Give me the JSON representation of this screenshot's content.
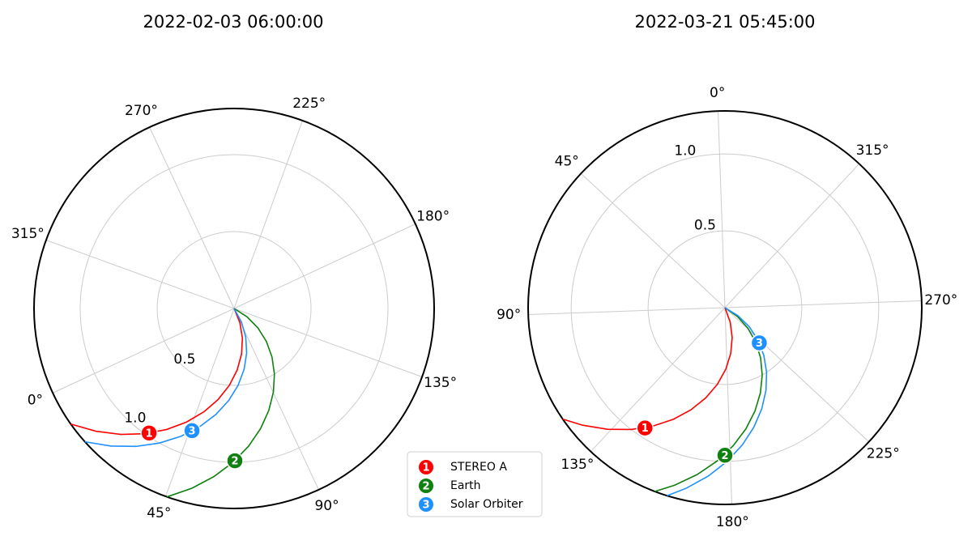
{
  "chart_data": [
    {
      "type": "polar",
      "title": "2022-02-03 06:00:00",
      "rlim": [
        0,
        1.3
      ],
      "rticks": [
        0.5,
        {
          "value": 1,
          "label": "1.0"
        }
      ],
      "rlabel_position": 25,
      "theta_offset": 205,
      "theta_direction": "counterclockwise",
      "thetaticks": [
        {
          "value": 0,
          "label": "0°"
        },
        {
          "value": 45,
          "label": "45°"
        },
        {
          "value": 90,
          "label": "90°"
        },
        {
          "value": 135,
          "label": "135°"
        },
        {
          "value": 180,
          "label": "180°"
        },
        {
          "value": 225,
          "label": "225°"
        },
        {
          "value": 270,
          "label": "270°"
        },
        {
          "value": 315,
          "label": "315°"
        }
      ],
      "grid": true,
      "legend": "lower right",
      "series": [
        {
          "name": "STEREO A",
          "color": "#ff0000",
          "marker_label": "1",
          "r": 0.98,
          "theta": 30.7,
          "line": {
            "r": [
              0,
              0.1,
              0.2,
              0.3,
              0.4,
              0.5,
              0.6,
              0.7,
              0.8,
              0.9,
              1.0,
              1.1,
              1.2,
              1.3
            ],
            "theta": [
              93.5,
              87.1,
              80.7,
              74.3,
              67.9,
              61.5,
              55.1,
              48.7,
              42.3,
              35.9,
              29.5,
              23.1,
              16.7,
              10.3
            ]
          }
        },
        {
          "name": "Earth",
          "color": "#108010",
          "marker_label": "2",
          "r": 0.99,
          "theta": 65.3,
          "line": {
            "r": [
              0,
              0.1,
              0.2,
              0.3,
              0.4,
              0.5,
              0.6,
              0.7,
              0.8,
              0.9,
              1.0,
              1.1,
              1.2,
              1.3
            ],
            "theta": [
              128.6,
              122.2,
              115.8,
              109.4,
              103.0,
              96.6,
              90.2,
              83.8,
              77.4,
              71.0,
              64.6,
              58.2,
              51.8,
              45.4
            ]
          }
        },
        {
          "name": "Solar Orbiter",
          "color": "#1e90ff",
          "marker_label": "3",
          "r": 0.84,
          "theta": 46,
          "line": {
            "r": [
              0,
              0.1,
              0.2,
              0.3,
              0.4,
              0.5,
              0.6,
              0.7,
              0.8,
              0.9,
              1.0,
              1.1,
              1.2,
              1.3
            ],
            "theta": [
              100,
              93.6,
              87.2,
              80.8,
              74.4,
              68,
              61.6,
              55.2,
              48.8,
              42.4,
              36,
              29.6,
              23.2,
              16.8
            ]
          }
        }
      ]
    },
    {
      "type": "polar",
      "title": "2022-03-21 05:45:00",
      "rlim": [
        0,
        1.28
      ],
      "rticks": [
        0.5,
        {
          "value": 1,
          "label": "1.0"
        }
      ],
      "rlabel_position": 13,
      "theta_offset": 92,
      "theta_direction": "counterclockwise",
      "thetaticks": [
        {
          "value": 0,
          "label": "0°"
        },
        {
          "value": 45,
          "label": "45°"
        },
        {
          "value": 90,
          "label": "90°"
        },
        {
          "value": 135,
          "label": "135°"
        },
        {
          "value": 180,
          "label": "180°"
        },
        {
          "value": 225,
          "label": "225°"
        },
        {
          "value": 270,
          "label": "270°"
        },
        {
          "value": 315,
          "label": "315°"
        }
      ],
      "grid": true,
      "series": [
        {
          "name": "STEREO A",
          "color": "#ff0000",
          "marker_label": "1",
          "r": 0.94,
          "theta": 144.4,
          "line": {
            "r": [
              0,
              0.1,
              0.2,
              0.3,
              0.4,
              0.5,
              0.6,
              0.7,
              0.8,
              0.9,
              1.0,
              1.1,
              1.2,
              1.28
            ],
            "theta": [
              204.4,
              198.0,
              191.6,
              185.2,
              178.8,
              172.4,
              166.0,
              159.6,
              153.2,
              146.8,
              140.4,
              134.0,
              127.6,
              122.5
            ]
          }
        },
        {
          "name": "Earth",
          "color": "#108010",
          "marker_label": "2",
          "r": 0.96,
          "theta": 178,
          "line": {
            "r": [
              0,
              0.1,
              0.2,
              0.3,
              0.4,
              0.5,
              0.6,
              0.7,
              0.8,
              0.9,
              1.0,
              1.1,
              1.2,
              1.28
            ],
            "theta": [
              239,
              232.6,
              226.2,
              219.8,
              213.4,
              207,
              200.6,
              194.2,
              187.8,
              181.4,
              175,
              168.6,
              162.2,
              157.1
            ]
          }
        },
        {
          "name": "Solar Orbiter",
          "color": "#1e90ff",
          "marker_label": "3",
          "r": 0.32,
          "theta": 222.3,
          "line": {
            "r": [
              0,
              0.1,
              0.2,
              0.3,
              0.4,
              0.5,
              0.6,
              0.7,
              0.8,
              0.9,
              1.0,
              1.1,
              1.2,
              1.28
            ],
            "theta": [
              242.8,
              236.4,
              230,
              223.6,
              217.2,
              210.8,
              204.4,
              198,
              191.6,
              185.2,
              178.8,
              172.4,
              166,
              160.9
            ]
          }
        }
      ]
    }
  ]
}
